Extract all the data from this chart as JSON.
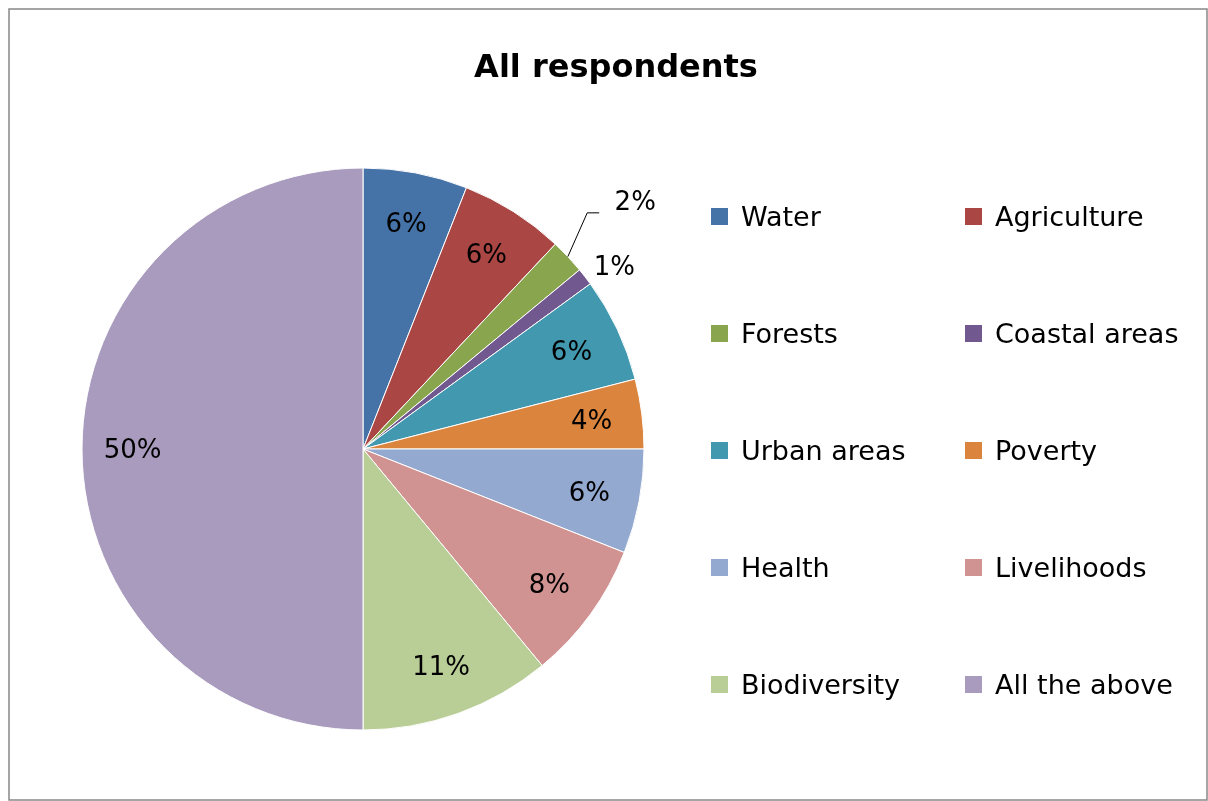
{
  "chart_data": {
    "type": "pie",
    "title": "All respondents",
    "categories": [
      "Water",
      "Agriculture",
      "Forests",
      "Coastal areas",
      "Urban areas",
      "Poverty",
      "Health",
      "Livelihoods",
      "Biodiversity",
      "All the above"
    ],
    "values": [
      6,
      6,
      2,
      1,
      6,
      4,
      6,
      8,
      11,
      50
    ],
    "value_labels": [
      "6%",
      "6%",
      "2%",
      "1%",
      "6%",
      "4%",
      "6%",
      "8%",
      "11%",
      "50%"
    ],
    "colors": [
      "#4572a7",
      "#aa4643",
      "#89a54e",
      "#71588f",
      "#4198af",
      "#db843d",
      "#93a9cf",
      "#d19392",
      "#b9cd96",
      "#a99bbd"
    ],
    "legend": "right"
  }
}
